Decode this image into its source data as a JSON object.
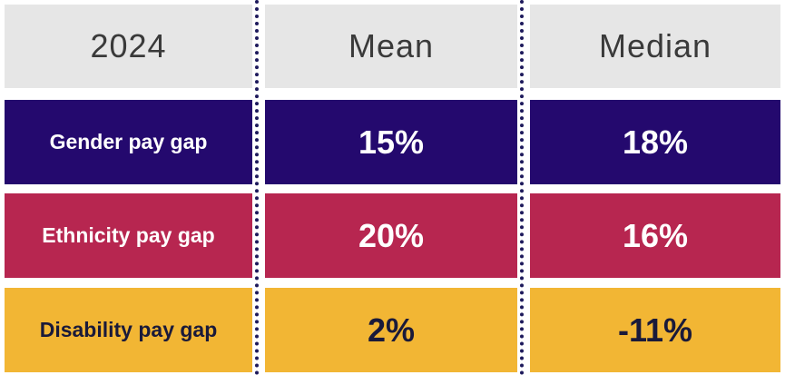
{
  "chart_data": {
    "type": "table",
    "header": {
      "corner": "2024",
      "columns": [
        "Mean",
        "Median"
      ]
    },
    "rows": [
      {
        "label": "Gender pay gap",
        "mean": "15%",
        "median": "18%",
        "bg": "#24096e",
        "fg": "#ffffff"
      },
      {
        "label": "Ethnicity pay gap",
        "mean": "20%",
        "median": "16%",
        "bg": "#b72650",
        "fg": "#ffffff"
      },
      {
        "label": "Disability pay gap",
        "mean": "2%",
        "median": "-11%",
        "bg": "#f2b634",
        "fg": "#1a1a3a"
      }
    ],
    "values": {
      "mean": [
        15,
        20,
        2
      ],
      "median": [
        18,
        16,
        -11
      ]
    },
    "colors": {
      "header_bg": "#e6e6e6",
      "header_text": "#3a3a3a",
      "divider": "#1e1a5c"
    }
  }
}
